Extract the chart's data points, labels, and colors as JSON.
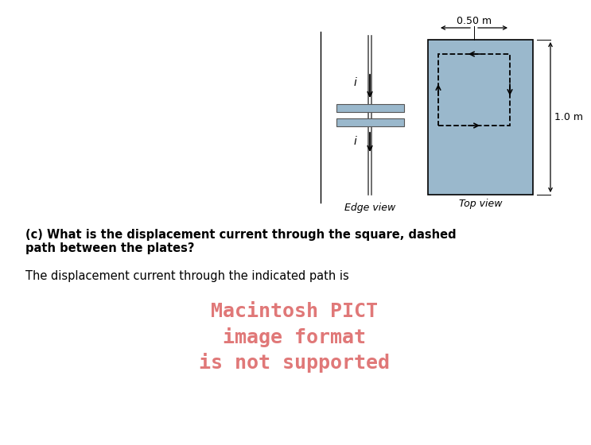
{
  "background_color": "#ffffff",
  "question_text_line1": "(c) What is the displacement current through the square, dashed",
  "question_text_line2": "path between the plates?",
  "answer_text": "The displacement current through the indicated path is",
  "pict_text_line1": "Macintosh PICT",
  "pict_text_line2": "image format",
  "pict_text_line3": "is not supported",
  "pict_text_color": "#e07878",
  "edge_label": "Edge view",
  "top_label": "Top view",
  "dim_label_horiz": "0.50 m",
  "dim_label_vert": "1.0 m",
  "plate_color": "#9ab8cc",
  "plate_outline": "#555555",
  "square_bg": "#9ab8cc",
  "question_fontsize": 10.5,
  "answer_fontsize": 10.5,
  "pict_fontsize": 18,
  "label_fontsize": 9,
  "current_label_fontsize": 10
}
